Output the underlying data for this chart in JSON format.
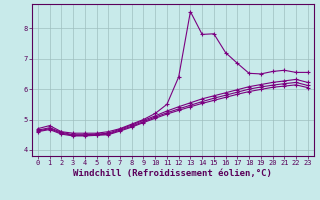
{
  "xlabel": "Windchill (Refroidissement éolien,°C)",
  "background_color": "#c8eaea",
  "line_color": "#7b0080",
  "grid_color": "#9fbfbf",
  "xlim": [
    -0.5,
    23.5
  ],
  "ylim": [
    3.8,
    8.8
  ],
  "xticks": [
    0,
    1,
    2,
    3,
    4,
    5,
    6,
    7,
    8,
    9,
    10,
    11,
    12,
    13,
    14,
    15,
    16,
    17,
    18,
    19,
    20,
    21,
    22,
    23
  ],
  "yticks": [
    4,
    5,
    6,
    7,
    8
  ],
  "lines": [
    {
      "x": [
        0,
        1,
        2,
        3,
        4,
        5,
        6,
        7,
        8,
        9,
        10,
        11,
        12,
        13,
        14,
        15,
        16,
        17,
        18,
        19,
        20,
        21,
        22,
        23
      ],
      "y": [
        4.7,
        4.8,
        4.6,
        4.55,
        4.55,
        4.55,
        4.6,
        4.7,
        4.85,
        5.0,
        5.2,
        5.5,
        6.4,
        8.55,
        7.8,
        7.82,
        7.2,
        6.85,
        6.52,
        6.5,
        6.58,
        6.62,
        6.55,
        6.55
      ]
    },
    {
      "x": [
        0,
        1,
        2,
        3,
        4,
        5,
        6,
        7,
        8,
        9,
        10,
        11,
        12,
        13,
        14,
        15,
        16,
        17,
        18,
        19,
        20,
        21,
        22,
        23
      ],
      "y": [
        4.65,
        4.73,
        4.58,
        4.5,
        4.5,
        4.52,
        4.55,
        4.68,
        4.82,
        4.97,
        5.12,
        5.28,
        5.42,
        5.55,
        5.68,
        5.78,
        5.88,
        5.98,
        6.08,
        6.15,
        6.22,
        6.27,
        6.32,
        6.22
      ]
    },
    {
      "x": [
        0,
        1,
        2,
        3,
        4,
        5,
        6,
        7,
        8,
        9,
        10,
        11,
        12,
        13,
        14,
        15,
        16,
        17,
        18,
        19,
        20,
        21,
        22,
        23
      ],
      "y": [
        4.62,
        4.7,
        4.55,
        4.48,
        4.48,
        4.5,
        4.52,
        4.65,
        4.78,
        4.93,
        5.08,
        5.22,
        5.35,
        5.47,
        5.59,
        5.7,
        5.8,
        5.9,
        6.0,
        6.07,
        6.13,
        6.18,
        6.22,
        6.12
      ]
    },
    {
      "x": [
        0,
        1,
        2,
        3,
        4,
        5,
        6,
        7,
        8,
        9,
        10,
        11,
        12,
        13,
        14,
        15,
        16,
        17,
        18,
        19,
        20,
        21,
        22,
        23
      ],
      "y": [
        4.6,
        4.67,
        4.52,
        4.46,
        4.46,
        4.48,
        4.5,
        4.62,
        4.75,
        4.9,
        5.04,
        5.18,
        5.3,
        5.42,
        5.53,
        5.63,
        5.73,
        5.83,
        5.92,
        5.99,
        6.06,
        6.1,
        6.14,
        6.05
      ]
    }
  ],
  "marker": "+",
  "marker_size": 3.5,
  "line_width": 0.8,
  "tick_fontsize": 5.0,
  "xlabel_fontsize": 6.5,
  "axis_color": "#5a005a"
}
